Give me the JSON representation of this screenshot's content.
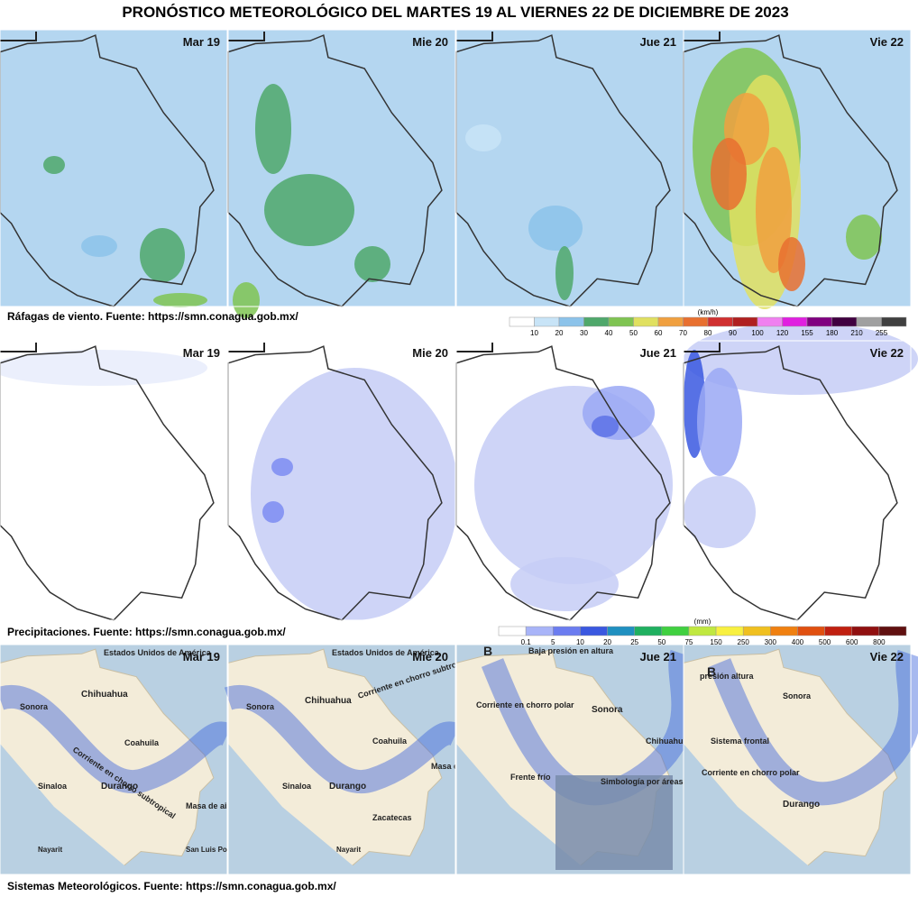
{
  "title": "PRONÓSTICO METEOROLÓGICO DEL MARTES 19 AL VIERNES 22 DE DICIEMBRE DE 2023",
  "sections": [
    {
      "caption": "Ráfagas de viento.  Fuente: https://smn.conagua.gob.mx/",
      "panels": [
        {
          "day": "Mar 19"
        },
        {
          "day": "Mie 20"
        },
        {
          "day": "Jue 21"
        },
        {
          "day": "Vie 22"
        }
      ],
      "legend": {
        "unit": "(km/h)",
        "labels": [
          "10",
          "20",
          "30",
          "40",
          "50",
          "60",
          "70",
          "80",
          "90",
          "100",
          "120",
          "155",
          "180",
          "210",
          "255"
        ]
      }
    },
    {
      "caption": "Precipitaciones.  Fuente: https://smn.conagua.gob.mx/",
      "panels": [
        {
          "day": "Mar 19"
        },
        {
          "day": "Mie 20"
        },
        {
          "day": "Jue 21"
        },
        {
          "day": "Vie 22"
        }
      ],
      "legend": {
        "unit": "(mm)",
        "labels": [
          "0.1",
          "5",
          "10",
          "20",
          "25",
          "50",
          "75",
          "150",
          "250",
          "300",
          "400",
          "500",
          "600",
          "800"
        ]
      }
    },
    {
      "caption": "Sistemas Meteorológicos.    Fuente: https://smn.conagua.gob.mx/",
      "panels": [
        {
          "day": "Mar 19",
          "labels": [
            "Estados Unidos de América",
            "Sonora",
            "Chihuahua",
            "Coahuila",
            "Sinaloa",
            "Durango",
            "Corriente en chorro subtropical",
            "Masa de aire frío",
            "Nayarit",
            "San Luis Potosí"
          ]
        },
        {
          "day": "Mie 20",
          "labels": [
            "Estados Unidos de América",
            "Sonora",
            "Chihuahua",
            "Coahuila",
            "Sinaloa",
            "Durango",
            "Corriente en chorro subtropical",
            "Masa de aire frío",
            "Zacatecas",
            "Nayarit"
          ]
        },
        {
          "day": "Jue 21",
          "labels": [
            "Baja presión en altura",
            "Corriente en chorro polar",
            "Frente frío",
            "Sonora",
            "Chihuahua",
            "Simbología por áreas",
            "B"
          ]
        },
        {
          "day": "Vie 22",
          "labels": [
            "presión altura",
            "Sistema frontal",
            "Corriente en chorro polar",
            "Sonora",
            "Durango",
            "B"
          ]
        }
      ]
    }
  ]
}
